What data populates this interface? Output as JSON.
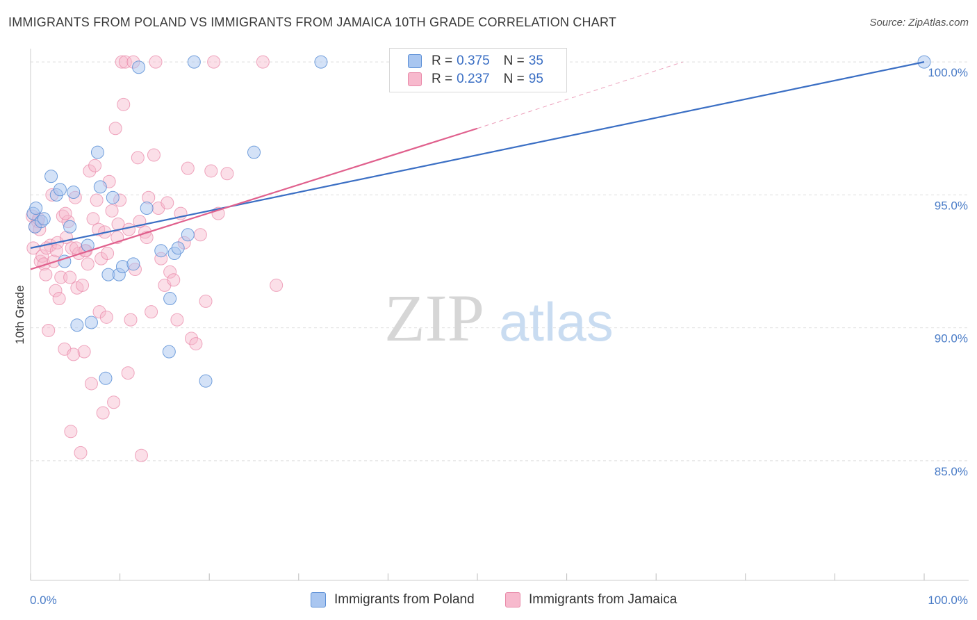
{
  "title": "IMMIGRANTS FROM POLAND VS IMMIGRANTS FROM JAMAICA 10TH GRADE CORRELATION CHART",
  "source": "Source: ZipAtlas.com",
  "watermark": {
    "zip": "ZIP",
    "atlas": "atlas"
  },
  "legend": {
    "poland": {
      "r_label": "R =",
      "r_value": "0.375",
      "n_label": "N =",
      "n_value": "35"
    },
    "jamaica": {
      "r_label": "R =",
      "r_value": "0.237",
      "n_label": "N =",
      "n_value": "95"
    }
  },
  "colors": {
    "poland_fill": "#a9c6f0",
    "poland_stroke": "#5b8fd6",
    "poland_line": "#3b6fc4",
    "jamaica_fill": "#f7b9cd",
    "jamaica_stroke": "#e98aa9",
    "jamaica_line": "#e0608d",
    "grid": "#dddddd",
    "tick_label": "#4a7cc7"
  },
  "chart_data": {
    "type": "scatter",
    "title": "IMMIGRANTS FROM POLAND VS IMMIGRANTS FROM JAMAICA 10TH GRADE CORRELATION CHART",
    "xlabel": "",
    "ylabel": "10th Grade",
    "xlim": [
      0,
      100
    ],
    "ylim": [
      80.5,
      100.5
    ],
    "x_tick_labels": [
      "0.0%",
      "100.0%"
    ],
    "y_ticks": [
      85,
      90,
      95,
      100
    ],
    "y_tick_labels": [
      "85.0%",
      "90.0%",
      "95.0%",
      "100.0%"
    ],
    "grid": true,
    "legend_position": "bottom-center",
    "series": [
      {
        "name": "Immigrants from Poland",
        "r": 0.375,
        "n": 35,
        "trend": {
          "x": [
            0,
            100
          ],
          "y": [
            93.0,
            100.0
          ],
          "dashed_extension_to": null
        },
        "points": [
          [
            0.3,
            94.3
          ],
          [
            0.5,
            93.8
          ],
          [
            0.6,
            94.5
          ],
          [
            1.2,
            94.0
          ],
          [
            1.5,
            94.1
          ],
          [
            2.3,
            95.7
          ],
          [
            2.9,
            95.0
          ],
          [
            3.3,
            95.2
          ],
          [
            4.4,
            93.8
          ],
          [
            4.8,
            95.1
          ],
          [
            5.2,
            90.1
          ],
          [
            6.4,
            93.1
          ],
          [
            6.8,
            90.2
          ],
          [
            7.5,
            96.6
          ],
          [
            7.8,
            95.3
          ],
          [
            8.4,
            88.1
          ],
          [
            8.7,
            92.0
          ],
          [
            9.2,
            94.9
          ],
          [
            9.9,
            92.0
          ],
          [
            10.3,
            92.3
          ],
          [
            11.5,
            92.4
          ],
          [
            12.1,
            99.8
          ],
          [
            13.0,
            94.5
          ],
          [
            14.6,
            92.9
          ],
          [
            15.5,
            89.1
          ],
          [
            15.6,
            91.1
          ],
          [
            16.1,
            92.8
          ],
          [
            16.5,
            93.0
          ],
          [
            17.6,
            93.5
          ],
          [
            18.3,
            100.0
          ],
          [
            19.6,
            88.0
          ],
          [
            25.0,
            96.6
          ],
          [
            32.5,
            100.0
          ],
          [
            100.0,
            100.0
          ],
          [
            3.8,
            92.5
          ]
        ]
      },
      {
        "name": "Immigrants from Jamaica",
        "r": 0.237,
        "n": 95,
        "trend": {
          "x": [
            0,
            50
          ],
          "y": [
            92.2,
            97.5
          ],
          "dashed_extension_to": [
            73,
            100.0
          ]
        },
        "points": [
          [
            0.2,
            94.2
          ],
          [
            0.3,
            93.0
          ],
          [
            0.5,
            93.8
          ],
          [
            0.8,
            94.0
          ],
          [
            1.0,
            93.7
          ],
          [
            1.1,
            92.5
          ],
          [
            1.3,
            92.7
          ],
          [
            1.5,
            92.4
          ],
          [
            1.7,
            92.0
          ],
          [
            2.0,
            89.9
          ],
          [
            2.2,
            93.1
          ],
          [
            2.4,
            95.0
          ],
          [
            2.6,
            92.5
          ],
          [
            2.8,
            91.4
          ],
          [
            3.0,
            93.2
          ],
          [
            3.2,
            91.1
          ],
          [
            3.4,
            91.9
          ],
          [
            3.6,
            94.2
          ],
          [
            3.8,
            89.2
          ],
          [
            4.0,
            93.4
          ],
          [
            4.2,
            94.0
          ],
          [
            4.4,
            91.9
          ],
          [
            4.5,
            86.1
          ],
          [
            4.6,
            93.0
          ],
          [
            4.8,
            89.0
          ],
          [
            5.0,
            94.9
          ],
          [
            5.2,
            91.5
          ],
          [
            5.4,
            92.8
          ],
          [
            5.6,
            85.3
          ],
          [
            5.8,
            91.6
          ],
          [
            6.0,
            89.1
          ],
          [
            6.2,
            92.9
          ],
          [
            6.4,
            92.4
          ],
          [
            6.6,
            95.9
          ],
          [
            6.8,
            87.9
          ],
          [
            7.0,
            94.1
          ],
          [
            7.2,
            96.1
          ],
          [
            7.4,
            94.8
          ],
          [
            7.6,
            93.7
          ],
          [
            7.7,
            90.6
          ],
          [
            7.9,
            92.6
          ],
          [
            8.1,
            86.8
          ],
          [
            8.3,
            93.6
          ],
          [
            8.5,
            90.4
          ],
          [
            8.8,
            95.5
          ],
          [
            9.1,
            94.4
          ],
          [
            9.3,
            87.2
          ],
          [
            9.5,
            97.5
          ],
          [
            9.7,
            93.4
          ],
          [
            10.0,
            94.8
          ],
          [
            10.2,
            100.0
          ],
          [
            10.4,
            98.4
          ],
          [
            10.6,
            100.0
          ],
          [
            10.9,
            88.3
          ],
          [
            11.2,
            90.3
          ],
          [
            11.5,
            100.0
          ],
          [
            11.7,
            92.2
          ],
          [
            12.0,
            96.4
          ],
          [
            12.4,
            85.2
          ],
          [
            12.8,
            93.6
          ],
          [
            13.2,
            94.9
          ],
          [
            13.5,
            90.6
          ],
          [
            13.8,
            96.5
          ],
          [
            14.0,
            100.0
          ],
          [
            14.3,
            94.5
          ],
          [
            14.6,
            92.6
          ],
          [
            15.0,
            91.6
          ],
          [
            15.3,
            94.7
          ],
          [
            15.6,
            92.1
          ],
          [
            16.0,
            91.8
          ],
          [
            16.4,
            90.3
          ],
          [
            16.8,
            94.3
          ],
          [
            17.2,
            93.2
          ],
          [
            17.6,
            96.0
          ],
          [
            18.0,
            89.6
          ],
          [
            18.5,
            89.4
          ],
          [
            19.0,
            93.5
          ],
          [
            19.6,
            91.0
          ],
          [
            20.5,
            100.0
          ],
          [
            20.2,
            95.9
          ],
          [
            21.0,
            94.3
          ],
          [
            22.0,
            95.8
          ],
          [
            26.0,
            100.0
          ],
          [
            27.5,
            91.6
          ],
          [
            13.0,
            93.4
          ],
          [
            1.8,
            93.0
          ],
          [
            2.9,
            92.9
          ],
          [
            5.1,
            93.0
          ],
          [
            6.1,
            92.9
          ],
          [
            8.6,
            92.8
          ],
          [
            9.8,
            93.9
          ],
          [
            11.0,
            93.7
          ],
          [
            12.2,
            94.0
          ],
          [
            3.9,
            94.3
          ],
          [
            0.9,
            94.1
          ]
        ]
      }
    ]
  },
  "bottom_legend": {
    "poland": "Immigrants from Poland",
    "jamaica": "Immigrants from Jamaica"
  }
}
